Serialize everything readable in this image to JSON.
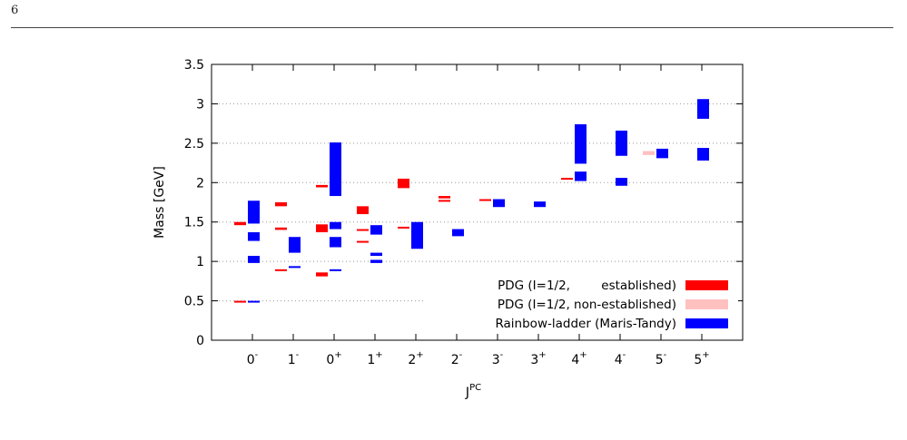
{
  "page": {
    "number": "6"
  },
  "colors": {
    "established": "#ff0000",
    "non_established": "#ffc0c0",
    "rainbow": "#0000ff"
  },
  "chart_data": {
    "type": "bar",
    "xlabel": "J",
    "xlabel_sup": "PC",
    "ylabel": "Mass [GeV]",
    "ylim": [
      0,
      3.5
    ],
    "yticks": [
      "0",
      "0.5",
      "1",
      "1.5",
      "2",
      "2.5",
      "3",
      "3.5"
    ],
    "grid": "horizontal dotted",
    "legend_position": "bottom-right",
    "categories": [
      {
        "base": "0",
        "sup": "-"
      },
      {
        "base": "1",
        "sup": "-"
      },
      {
        "base": "0",
        "sup": "+"
      },
      {
        "base": "1",
        "sup": "+"
      },
      {
        "base": "2",
        "sup": "+"
      },
      {
        "base": "2",
        "sup": "-"
      },
      {
        "base": "3",
        "sup": "-"
      },
      {
        "base": "3",
        "sup": "+"
      },
      {
        "base": "4",
        "sup": "+"
      },
      {
        "base": "4",
        "sup": "-"
      },
      {
        "base": "5",
        "sup": "-"
      },
      {
        "base": "5",
        "sup": "+"
      }
    ],
    "series": [
      {
        "name": "PDG (I=1/2,        established)",
        "color": "established",
        "ranges": [
          {
            "cat": 0,
            "low": 0.49,
            "high": 0.5
          },
          {
            "cat": 0,
            "low": 1.46,
            "high": 1.5
          },
          {
            "cat": 1,
            "low": 0.88,
            "high": 0.9
          },
          {
            "cat": 1,
            "low": 1.4,
            "high": 1.43
          },
          {
            "cat": 1,
            "low": 1.7,
            "high": 1.75
          },
          {
            "cat": 2,
            "low": 0.81,
            "high": 0.86
          },
          {
            "cat": 2,
            "low": 1.37,
            "high": 1.47
          },
          {
            "cat": 2,
            "low": 1.94,
            "high": 1.97
          },
          {
            "cat": 3,
            "low": 1.24,
            "high": 1.26
          },
          {
            "cat": 3,
            "low": 1.39,
            "high": 1.41
          },
          {
            "cat": 3,
            "low": 1.6,
            "high": 1.7
          },
          {
            "cat": 4,
            "low": 1.42,
            "high": 1.44
          },
          {
            "cat": 4,
            "low": 1.93,
            "high": 2.05
          },
          {
            "cat": 5,
            "low": 1.76,
            "high": 1.78
          },
          {
            "cat": 5,
            "low": 1.8,
            "high": 1.83
          },
          {
            "cat": 6,
            "low": 1.77,
            "high": 1.79
          },
          {
            "cat": 8,
            "low": 2.04,
            "high": 2.06
          }
        ]
      },
      {
        "name": "PDG (I=1/2, non-established)",
        "color": "non_established",
        "ranges": [
          {
            "cat": 10,
            "low": 2.35,
            "high": 2.4
          }
        ]
      },
      {
        "name": "Rainbow-ladder (Maris-Tandy)",
        "color": "rainbow",
        "ranges": [
          {
            "cat": 0,
            "low": 0.49,
            "high": 0.5
          },
          {
            "cat": 0,
            "low": 0.98,
            "high": 1.07
          },
          {
            "cat": 0,
            "low": 1.26,
            "high": 1.37
          },
          {
            "cat": 0,
            "low": 1.48,
            "high": 1.77
          },
          {
            "cat": 1,
            "low": 0.92,
            "high": 0.94
          },
          {
            "cat": 1,
            "low": 1.11,
            "high": 1.31
          },
          {
            "cat": 2,
            "low": 0.88,
            "high": 0.9
          },
          {
            "cat": 2,
            "low": 1.18,
            "high": 1.31
          },
          {
            "cat": 2,
            "low": 1.41,
            "high": 1.5
          },
          {
            "cat": 2,
            "low": 1.83,
            "high": 2.51
          },
          {
            "cat": 3,
            "low": 0.98,
            "high": 1.02
          },
          {
            "cat": 3,
            "low": 1.07,
            "high": 1.11
          },
          {
            "cat": 3,
            "low": 1.34,
            "high": 1.46
          },
          {
            "cat": 4,
            "low": 1.16,
            "high": 1.5
          },
          {
            "cat": 5,
            "low": 1.32,
            "high": 1.41
          },
          {
            "cat": 6,
            "low": 1.69,
            "high": 1.79
          },
          {
            "cat": 7,
            "low": 1.69,
            "high": 1.76
          },
          {
            "cat": 8,
            "low": 2.02,
            "high": 2.14
          },
          {
            "cat": 8,
            "low": 2.24,
            "high": 2.74
          },
          {
            "cat": 9,
            "low": 1.96,
            "high": 2.06
          },
          {
            "cat": 9,
            "low": 2.34,
            "high": 2.66
          },
          {
            "cat": 10,
            "low": 2.31,
            "high": 2.43
          },
          {
            "cat": 11,
            "low": 2.28,
            "high": 2.44
          },
          {
            "cat": 11,
            "low": 2.81,
            "high": 3.06
          }
        ]
      }
    ]
  }
}
